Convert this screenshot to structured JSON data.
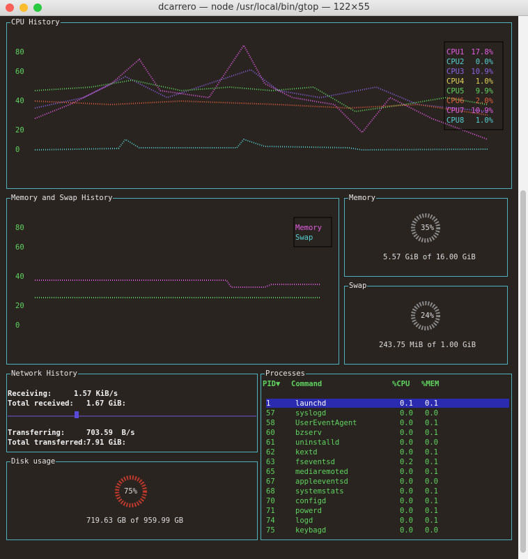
{
  "window": {
    "title": "dcarrero — node /usr/local/bin/gtop — 122×55"
  },
  "cpu_history": {
    "title": "CPU History",
    "yticks": [
      "80",
      "60",
      "40",
      "20",
      "0"
    ],
    "legend": [
      {
        "name": "CPU1",
        "value": "17.8%",
        "color": "#e35ee3"
      },
      {
        "name": "CPU2",
        "value": "0.0%",
        "color": "#55d0d0"
      },
      {
        "name": "CPU3",
        "value": "10.9%",
        "color": "#8a63e6"
      },
      {
        "name": "CPU4",
        "value": "1.0%",
        "color": "#e0d35a"
      },
      {
        "name": "CPU5",
        "value": "9.9%",
        "color": "#5fd35f"
      },
      {
        "name": "CPU6",
        "value": "2.0%",
        "color": "#e0603c"
      },
      {
        "name": "CPU7",
        "value": "10.9%",
        "color": "#e35ee3"
      },
      {
        "name": "CPU8",
        "value": "1.0%",
        "color": "#55d0d0"
      }
    ]
  },
  "memory_history": {
    "title": "Memory and Swap History",
    "yticks": [
      "80",
      "60",
      "40",
      "20",
      "0"
    ],
    "legend": [
      {
        "name": "Memory",
        "color": "#e35ee3"
      },
      {
        "name": "Swap",
        "color": "#55d0d0"
      }
    ]
  },
  "memory": {
    "title": "Memory",
    "percent": "35%",
    "detail": "5.57 GiB of 16.00 GiB"
  },
  "swap": {
    "title": "Swap",
    "percent": "24%",
    "detail": "243.75 MiB of 1.00 GiB"
  },
  "network": {
    "title": "Network History",
    "receiving_label": "Receiving:",
    "receiving": "1.57 KiB/s",
    "total_received_label": "Total received:",
    "total_received": "1.67 GiB:",
    "transferring_label": "Transferring:",
    "transferring": "703.59  B/s",
    "total_transferred_label": "Total transferred:",
    "total_transferred": "7.91 GiB:"
  },
  "disk": {
    "title": "Disk usage",
    "percent": "75%",
    "detail": "719.63 GB of 959.99 GB"
  },
  "processes": {
    "title": "Processes",
    "columns": [
      "PID▼",
      "Command",
      "%CPU",
      "%MEM"
    ],
    "rows": [
      [
        "1",
        "launchd",
        "0.1",
        "0.1"
      ],
      [
        "57",
        "syslogd",
        "0.0",
        "0.0"
      ],
      [
        "58",
        "UserEventAgent",
        "0.0",
        "0.1"
      ],
      [
        "60",
        "bzserv",
        "0.0",
        "0.1"
      ],
      [
        "61",
        "uninstalld",
        "0.0",
        "0.0"
      ],
      [
        "62",
        "kextd",
        "0.0",
        "0.1"
      ],
      [
        "63",
        "fseventsd",
        "0.2",
        "0.1"
      ],
      [
        "65",
        "mediaremoted",
        "0.0",
        "0.1"
      ],
      [
        "67",
        "appleeventsd",
        "0.0",
        "0.0"
      ],
      [
        "68",
        "systemstats",
        "0.0",
        "0.1"
      ],
      [
        "70",
        "configd",
        "0.0",
        "0.1"
      ],
      [
        "71",
        "powerd",
        "0.0",
        "0.1"
      ],
      [
        "74",
        "logd",
        "0.0",
        "0.1"
      ],
      [
        "75",
        "keybagd",
        "0.0",
        "0.0"
      ]
    ]
  }
}
